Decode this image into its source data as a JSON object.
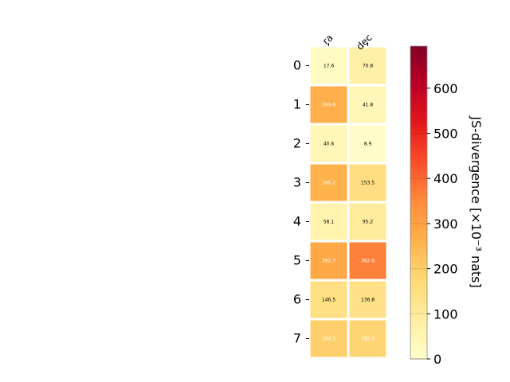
{
  "chart_data": {
    "type": "heatmap",
    "title": "",
    "x_categories": [
      "ra",
      "dec"
    ],
    "y_categories": [
      "0",
      "1",
      "2",
      "3",
      "4",
      "5",
      "6",
      "7"
    ],
    "values": [
      [
        17.6,
        70.8
      ],
      [
        269.6,
        41.8
      ],
      [
        40.6,
        8.9
      ],
      [
        260.2,
        153.5
      ],
      [
        58.1,
        95.2
      ],
      [
        282.7,
        362.6
      ],
      [
        146.5,
        136.8
      ],
      [
        194.5,
        182.2
      ]
    ],
    "value_labels": [
      [
        "17.6",
        "70.8"
      ],
      [
        "269.6",
        "41.8"
      ],
      [
        "40.6",
        "8.9"
      ],
      [
        "260.2",
        "153.5"
      ],
      [
        "58.1",
        "95.2"
      ],
      [
        "282.7",
        "362.6"
      ],
      [
        "146.5",
        "136.8"
      ],
      [
        "194.5",
        "182.2"
      ]
    ],
    "colormap": "YlOrRd",
    "colorbar": {
      "label": "JS-divergence [×10⁻³ nats]",
      "range": [
        0,
        693.1
      ],
      "ticks": [
        0,
        100,
        200,
        300,
        400,
        500,
        600
      ],
      "tick_labels": [
        "0",
        "100",
        "200",
        "300",
        "400",
        "500",
        "600"
      ]
    },
    "grid": false
  }
}
